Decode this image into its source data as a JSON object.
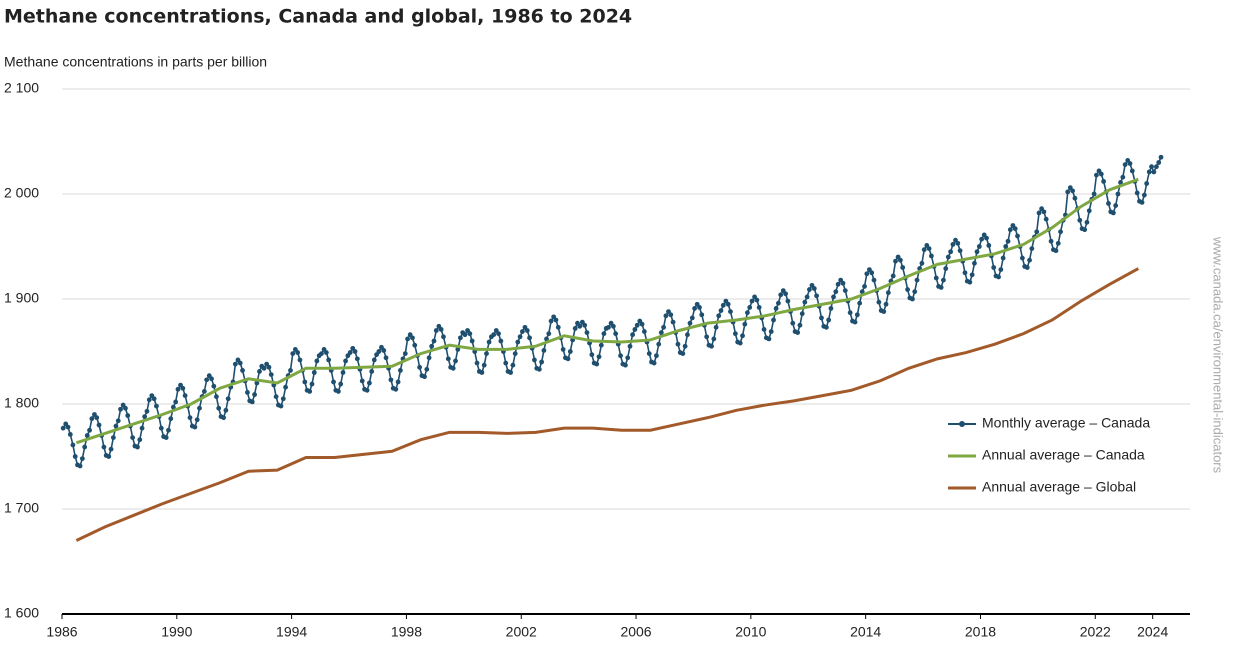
{
  "chart_data": {
    "type": "line",
    "title": "Methane concentrations, Canada and global, 1986 to 2024",
    "y_label": "Methane concentrations in parts per billion",
    "source": "www.canada.ca/environmental-indicators",
    "xlim": [
      1986,
      2025.3
    ],
    "xticks": [
      1986,
      1990,
      1994,
      1998,
      2002,
      2006,
      2010,
      2014,
      2018,
      2022,
      2024
    ],
    "ylim": [
      1600,
      2100
    ],
    "yticks": [
      {
        "value": 1600,
        "label": "1 600"
      },
      {
        "value": 1700,
        "label": "1 700"
      },
      {
        "value": 1800,
        "label": "1 800"
      },
      {
        "value": 1900,
        "label": "1 900"
      },
      {
        "value": 2000,
        "label": "2 000"
      },
      {
        "value": 2100,
        "label": "2 100"
      }
    ],
    "grid": true,
    "legend": "right",
    "x": [
      1986.5,
      1987.5,
      1988.5,
      1989.5,
      1990.5,
      1991.5,
      1992.5,
      1993.5,
      1994.5,
      1995.5,
      1996.5,
      1997.5,
      1998.5,
      1999.5,
      2000.5,
      2001.5,
      2002.5,
      2003.5,
      2004.5,
      2005.5,
      2006.5,
      2007.5,
      2008.5,
      2009.5,
      2010.5,
      2011.5,
      2012.5,
      2013.5,
      2014.5,
      2015.5,
      2016.5,
      2017.5,
      2018.5,
      2019.5,
      2020.5,
      2021.5,
      2022.5,
      2023.5
    ],
    "series": [
      {
        "name": "Monthly average – Canada",
        "color": "#1f4f6f",
        "markers": true,
        "x": [
          1986.04,
          1986.13,
          1986.21,
          1986.29,
          1986.38,
          1986.46,
          1986.54,
          1986.63,
          1986.71,
          1986.79,
          1986.88,
          1986.96,
          1987.04,
          1987.13,
          1987.21,
          1987.29,
          1987.38,
          1987.46,
          1987.54,
          1987.63,
          1987.71,
          1987.79,
          1987.88,
          1987.96,
          1988.04,
          1988.13,
          1988.21,
          1988.29,
          1988.38,
          1988.46,
          1988.54,
          1988.63,
          1988.71,
          1988.79,
          1988.88,
          1988.96,
          1989.04,
          1989.13,
          1989.21,
          1989.29,
          1989.38,
          1989.46,
          1989.54,
          1989.63,
          1989.71,
          1989.79,
          1989.88,
          1989.96,
          1990.04,
          1990.13,
          1990.21,
          1990.29,
          1990.38,
          1990.46,
          1990.54,
          1990.63,
          1990.71,
          1990.79,
          1990.88,
          1990.96,
          1991.04,
          1991.13,
          1991.21,
          1991.29,
          1991.38,
          1991.46,
          1991.54,
          1991.63,
          1991.71,
          1991.79,
          1991.88,
          1991.96,
          1992.04,
          1992.13,
          1992.21,
          1992.29,
          1992.38,
          1992.46,
          1992.54,
          1992.63,
          1992.71,
          1992.79,
          1992.88,
          1992.96,
          1993.04,
          1993.13,
          1993.21,
          1993.29,
          1993.38,
          1993.46,
          1993.54,
          1993.63,
          1993.71,
          1993.79,
          1993.88,
          1993.96,
          1994.04,
          1994.13,
          1994.21,
          1994.29,
          1994.38,
          1994.46,
          1994.54,
          1994.63,
          1994.71,
          1994.79,
          1994.88,
          1994.96,
          1995.04,
          1995.13,
          1995.21,
          1995.29,
          1995.38,
          1995.46,
          1995.54,
          1995.63,
          1995.71,
          1995.79,
          1995.88,
          1995.96,
          1996.04,
          1996.13,
          1996.21,
          1996.29,
          1996.38,
          1996.46,
          1996.54,
          1996.63,
          1996.71,
          1996.79,
          1996.88,
          1996.96,
          1997.04,
          1997.13,
          1997.21,
          1997.29,
          1997.38,
          1997.46,
          1997.54,
          1997.63,
          1997.71,
          1997.79,
          1997.88,
          1997.96,
          1998.04,
          1998.13,
          1998.21,
          1998.29,
          1998.38,
          1998.46,
          1998.54,
          1998.63,
          1998.71,
          1998.79,
          1998.88,
          1998.96,
          1999.04,
          1999.13,
          1999.21,
          1999.29,
          1999.38,
          1999.46,
          1999.54,
          1999.63,
          1999.71,
          1999.79,
          1999.88,
          1999.96,
          2000.04,
          2000.13,
          2000.21,
          2000.29,
          2000.38,
          2000.46,
          2000.54,
          2000.63,
          2000.71,
          2000.79,
          2000.88,
          2000.96,
          2001.04,
          2001.13,
          2001.21,
          2001.29,
          2001.38,
          2001.46,
          2001.54,
          2001.63,
          2001.71,
          2001.79,
          2001.88,
          2001.96,
          2002.04,
          2002.13,
          2002.21,
          2002.29,
          2002.38,
          2002.46,
          2002.54,
          2002.63,
          2002.71,
          2002.79,
          2002.88,
          2002.96,
          2003.04,
          2003.13,
          2003.21,
          2003.29,
          2003.38,
          2003.46,
          2003.54,
          2003.63,
          2003.71,
          2003.79,
          2003.88,
          2003.96,
          2004.04,
          2004.13,
          2004.21,
          2004.29,
          2004.38,
          2004.46,
          2004.54,
          2004.63,
          2004.71,
          2004.79,
          2004.88,
          2004.96,
          2005.04,
          2005.13,
          2005.21,
          2005.29,
          2005.38,
          2005.46,
          2005.54,
          2005.63,
          2005.71,
          2005.79,
          2005.88,
          2005.96,
          2006.04,
          2006.13,
          2006.21,
          2006.29,
          2006.38,
          2006.46,
          2006.54,
          2006.63,
          2006.71,
          2006.79,
          2006.88,
          2006.96,
          2007.04,
          2007.13,
          2007.21,
          2007.29,
          2007.38,
          2007.46,
          2007.54,
          2007.63,
          2007.71,
          2007.79,
          2007.88,
          2007.96,
          2008.04,
          2008.13,
          2008.21,
          2008.29,
          2008.38,
          2008.46,
          2008.54,
          2008.63,
          2008.71,
          2008.79,
          2008.88,
          2008.96,
          2009.04,
          2009.13,
          2009.21,
          2009.29,
          2009.38,
          2009.46,
          2009.54,
          2009.63,
          2009.71,
          2009.79,
          2009.88,
          2009.96,
          2010.04,
          2010.13,
          2010.21,
          2010.29,
          2010.38,
          2010.46,
          2010.54,
          2010.63,
          2010.71,
          2010.79,
          2010.88,
          2010.96,
          2011.04,
          2011.13,
          2011.21,
          2011.29,
          2011.38,
          2011.46,
          2011.54,
          2011.63,
          2011.71,
          2011.79,
          2011.88,
          2011.96,
          2012.04,
          2012.13,
          2012.21,
          2012.29,
          2012.38,
          2012.46,
          2012.54,
          2012.63,
          2012.71,
          2012.79,
          2012.88,
          2012.96,
          2013.04,
          2013.13,
          2013.21,
          2013.29,
          2013.38,
          2013.46,
          2013.54,
          2013.63,
          2013.71,
          2013.79,
          2013.88,
          2013.96,
          2014.04,
          2014.13,
          2014.21,
          2014.29,
          2014.38,
          2014.46,
          2014.54,
          2014.63,
          2014.71,
          2014.79,
          2014.88,
          2014.96,
          2015.04,
          2015.13,
          2015.21,
          2015.29,
          2015.38,
          2015.46,
          2015.54,
          2015.63,
          2015.71,
          2015.79,
          2015.88,
          2015.96,
          2016.04,
          2016.13,
          2016.21,
          2016.29,
          2016.38,
          2016.46,
          2016.54,
          2016.63,
          2016.71,
          2016.79,
          2016.88,
          2016.96,
          2017.04,
          2017.13,
          2017.21,
          2017.29,
          2017.38,
          2017.46,
          2017.54,
          2017.63,
          2017.71,
          2017.79,
          2017.88,
          2017.96,
          2018.04,
          2018.13,
          2018.21,
          2018.29,
          2018.38,
          2018.46,
          2018.54,
          2018.63,
          2018.71,
          2018.79,
          2018.88,
          2018.96,
          2019.04,
          2019.13,
          2019.21,
          2019.29,
          2019.38,
          2019.46,
          2019.54,
          2019.63,
          2019.71,
          2019.79,
          2019.88,
          2019.96,
          2020.04,
          2020.13,
          2020.21,
          2020.29,
          2020.38,
          2020.46,
          2020.54,
          2020.63,
          2020.71,
          2020.79,
          2020.88,
          2020.96,
          2021.04,
          2021.13,
          2021.21,
          2021.29,
          2021.38,
          2021.46,
          2021.54,
          2021.63,
          2021.71,
          2021.79,
          2021.88,
          2021.96,
          2022.04,
          2022.13,
          2022.21,
          2022.29,
          2022.38,
          2022.46,
          2022.54,
          2022.63,
          2022.71,
          2022.79,
          2022.88,
          2022.96,
          2023.04,
          2023.13,
          2023.21,
          2023.29,
          2023.38,
          2023.46,
          2023.54,
          2023.63,
          2023.71,
          2023.79,
          2023.88,
          2023.96,
          2024.04,
          2024.13,
          2024.21,
          2024.29
        ],
        "values": [
          1777,
          1781,
          1778,
          1771,
          1761,
          1750,
          1742,
          1741,
          1748,
          1759,
          1770,
          1775,
          1786,
          1790,
          1787,
          1780,
          1770,
          1759,
          1751,
          1750,
          1757,
          1768,
          1779,
          1784,
          1795,
          1799,
          1796,
          1789,
          1779,
          1768,
          1760,
          1759,
          1766,
          1777,
          1788,
          1793,
          1804,
          1808,
          1805,
          1798,
          1788,
          1777,
          1769,
          1768,
          1775,
          1786,
          1797,
          1802,
          1814,
          1818,
          1815,
          1808,
          1798,
          1787,
          1779,
          1778,
          1785,
          1796,
          1807,
          1812,
          1823,
          1827,
          1824,
          1817,
          1807,
          1796,
          1788,
          1787,
          1794,
          1805,
          1816,
          1821,
          1838,
          1842,
          1839,
          1832,
          1822,
          1811,
          1803,
          1802,
          1809,
          1820,
          1831,
          1836,
          1834,
          1838,
          1835,
          1828,
          1818,
          1807,
          1799,
          1798,
          1805,
          1816,
          1827,
          1832,
          1848,
          1852,
          1849,
          1842,
          1832,
          1821,
          1813,
          1812,
          1819,
          1830,
          1841,
          1846,
          1848,
          1852,
          1849,
          1842,
          1832,
          1821,
          1813,
          1812,
          1819,
          1830,
          1841,
          1846,
          1849,
          1853,
          1850,
          1843,
          1833,
          1822,
          1814,
          1813,
          1820,
          1831,
          1842,
          1847,
          1850,
          1854,
          1851,
          1844,
          1834,
          1823,
          1815,
          1814,
          1821,
          1832,
          1843,
          1848,
          1862,
          1866,
          1863,
          1856,
          1846,
          1835,
          1827,
          1826,
          1833,
          1844,
          1855,
          1860,
          1870,
          1874,
          1871,
          1864,
          1854,
          1843,
          1835,
          1834,
          1841,
          1852,
          1863,
          1868,
          1866,
          1870,
          1867,
          1860,
          1850,
          1839,
          1831,
          1830,
          1837,
          1848,
          1859,
          1864,
          1866,
          1870,
          1867,
          1860,
          1850,
          1839,
          1831,
          1830,
          1837,
          1848,
          1859,
          1864,
          1869,
          1873,
          1870,
          1863,
          1853,
          1842,
          1834,
          1833,
          1840,
          1851,
          1862,
          1867,
          1879,
          1883,
          1880,
          1873,
          1863,
          1852,
          1844,
          1843,
          1850,
          1861,
          1872,
          1877,
          1874,
          1878,
          1875,
          1868,
          1858,
          1847,
          1839,
          1838,
          1845,
          1856,
          1867,
          1872,
          1873,
          1877,
          1874,
          1867,
          1857,
          1846,
          1838,
          1837,
          1844,
          1855,
          1866,
          1871,
          1875,
          1879,
          1876,
          1869,
          1859,
          1848,
          1840,
          1839,
          1846,
          1857,
          1868,
          1873,
          1884,
          1888,
          1885,
          1878,
          1868,
          1857,
          1849,
          1848,
          1855,
          1866,
          1877,
          1882,
          1891,
          1895,
          1892,
          1885,
          1875,
          1864,
          1856,
          1855,
          1862,
          1873,
          1884,
          1889,
          1894,
          1898,
          1895,
          1888,
          1878,
          1867,
          1859,
          1858,
          1865,
          1876,
          1887,
          1892,
          1898,
          1902,
          1899,
          1892,
          1882,
          1871,
          1863,
          1862,
          1869,
          1880,
          1891,
          1896,
          1904,
          1908,
          1905,
          1898,
          1888,
          1877,
          1869,
          1868,
          1875,
          1886,
          1897,
          1902,
          1909,
          1913,
          1910,
          1903,
          1893,
          1882,
          1874,
          1873,
          1880,
          1891,
          1902,
          1907,
          1914,
          1918,
          1915,
          1908,
          1898,
          1887,
          1879,
          1878,
          1885,
          1896,
          1907,
          1912,
          1924,
          1928,
          1925,
          1918,
          1908,
          1897,
          1889,
          1888,
          1895,
          1906,
          1917,
          1922,
          1936,
          1940,
          1937,
          1930,
          1920,
          1909,
          1901,
          1900,
          1907,
          1918,
          1929,
          1934,
          1947,
          1951,
          1948,
          1941,
          1931,
          1920,
          1912,
          1911,
          1918,
          1929,
          1940,
          1945,
          1952,
          1956,
          1953,
          1946,
          1936,
          1925,
          1917,
          1916,
          1923,
          1934,
          1945,
          1950,
          1957,
          1961,
          1958,
          1951,
          1941,
          1930,
          1922,
          1921,
          1928,
          1939,
          1950,
          1955,
          1966,
          1970,
          1967,
          1960,
          1950,
          1939,
          1931,
          1930,
          1937,
          1948,
          1959,
          1964,
          1982,
          1986,
          1983,
          1976,
          1966,
          1955,
          1947,
          1946,
          1953,
          1964,
          1975,
          1980,
          2002,
          2006,
          2003,
          1996,
          1986,
          1975,
          1967,
          1966,
          1973,
          1984,
          1995,
          2000,
          2018,
          2022,
          2019,
          2012,
          2002,
          1991,
          1983,
          1982,
          1989,
          2000,
          2011,
          2016,
          2028,
          2032,
          2029,
          2022,
          2012,
          2001,
          1993,
          1992,
          1999,
          2010,
          2021,
          2026,
          2021,
          2026,
          2030,
          2035
        ]
      },
      {
        "name": "Annual average – Canada",
        "color": "#7fa843",
        "values": [
          1763,
          1772,
          1781,
          1790,
          1800,
          1815,
          1824,
          1820,
          1834,
          1834,
          1835,
          1836,
          1848,
          1856,
          1852,
          1852,
          1855,
          1865,
          1860,
          1859,
          1861,
          1870,
          1877,
          1880,
          1884,
          1890,
          1895,
          1900,
          1910,
          1922,
          1933,
          1938,
          1943,
          1952,
          1968,
          1988,
          2004,
          2014
        ]
      },
      {
        "name": "Annual average – Global",
        "color": "#a35a2a",
        "values": [
          1670,
          1683,
          1694,
          1705,
          1715,
          1725,
          1736,
          1737,
          1749,
          1749,
          1752,
          1755,
          1766,
          1773,
          1773,
          1772,
          1773,
          1777,
          1777,
          1775,
          1775,
          1781,
          1787,
          1794,
          1799,
          1803,
          1808,
          1813,
          1822,
          1834,
          1843,
          1849,
          1857,
          1867,
          1880,
          1898,
          1914,
          1929
        ]
      }
    ]
  }
}
